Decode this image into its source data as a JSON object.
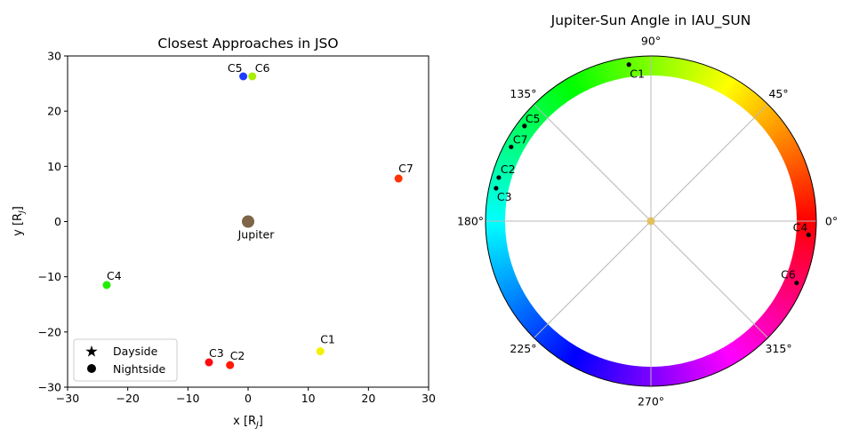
{
  "chart_data": [
    {
      "type": "scatter",
      "title": "Closest Approaches in JSO",
      "xlabel": "x [R",
      "xlabel_sub": "J",
      "xlabel_close": "]",
      "ylabel": "y [R",
      "ylabel_sub": "J",
      "ylabel_close": "]",
      "xlim": [
        -30,
        30
      ],
      "ylim": [
        -30,
        30
      ],
      "xticks": [
        -30,
        -20,
        -10,
        0,
        10,
        20,
        30
      ],
      "yticks": [
        -30,
        -20,
        -10,
        0,
        10,
        20,
        30
      ],
      "xtick_labels": [
        "−30",
        "−20",
        "−10",
        "0",
        "10",
        "20",
        "30"
      ],
      "ytick_labels": [
        "−30",
        "−20",
        "−10",
        "0",
        "10",
        "20",
        "30"
      ],
      "planet": {
        "label": "Jupiter",
        "x": 0,
        "y": 0,
        "color": "#7f6548"
      },
      "points": [
        {
          "label": "C1",
          "x": 12.0,
          "y": -23.5,
          "color": "#f2f200"
        },
        {
          "label": "C2",
          "x": -3.0,
          "y": -26.0,
          "color": "#ff1a00"
        },
        {
          "label": "C3",
          "x": -6.5,
          "y": -25.5,
          "color": "#ff0a10"
        },
        {
          "label": "C4",
          "x": -23.5,
          "y": -11.5,
          "color": "#22ee00"
        },
        {
          "label": "C5",
          "x": -0.8,
          "y": 26.3,
          "color": "#1e3cff"
        },
        {
          "label": "C6",
          "x": 0.7,
          "y": 26.3,
          "color": "#a8ee00"
        },
        {
          "label": "C7",
          "x": 25.0,
          "y": 7.8,
          "color": "#ff3300"
        }
      ],
      "legend": {
        "position": "lower-left",
        "entries": [
          {
            "marker": "star",
            "label": "Dayside"
          },
          {
            "marker": "circle",
            "label": "Nightside"
          }
        ]
      },
      "grid": false
    },
    {
      "type": "polar",
      "title": "Jupiter-Sun Angle in IAU_SUN",
      "angle_ticks": [
        0,
        45,
        90,
        135,
        180,
        225,
        270,
        315
      ],
      "angle_tick_labels": [
        "0°",
        "45°",
        "90°",
        "135°",
        "180°",
        "225°",
        "270°",
        "315°"
      ],
      "colormap": "hsv",
      "grid": true,
      "center_marker_color": "#e0c060",
      "points": [
        {
          "label": "C1",
          "angle_deg": 98
        },
        {
          "label": "C2",
          "angle_deg": 164
        },
        {
          "label": "C3",
          "angle_deg": 168
        },
        {
          "label": "C4",
          "angle_deg": 355
        },
        {
          "label": "C5",
          "angle_deg": 143
        },
        {
          "label": "C6",
          "angle_deg": 337
        },
        {
          "label": "C7",
          "angle_deg": 152
        }
      ]
    }
  ]
}
